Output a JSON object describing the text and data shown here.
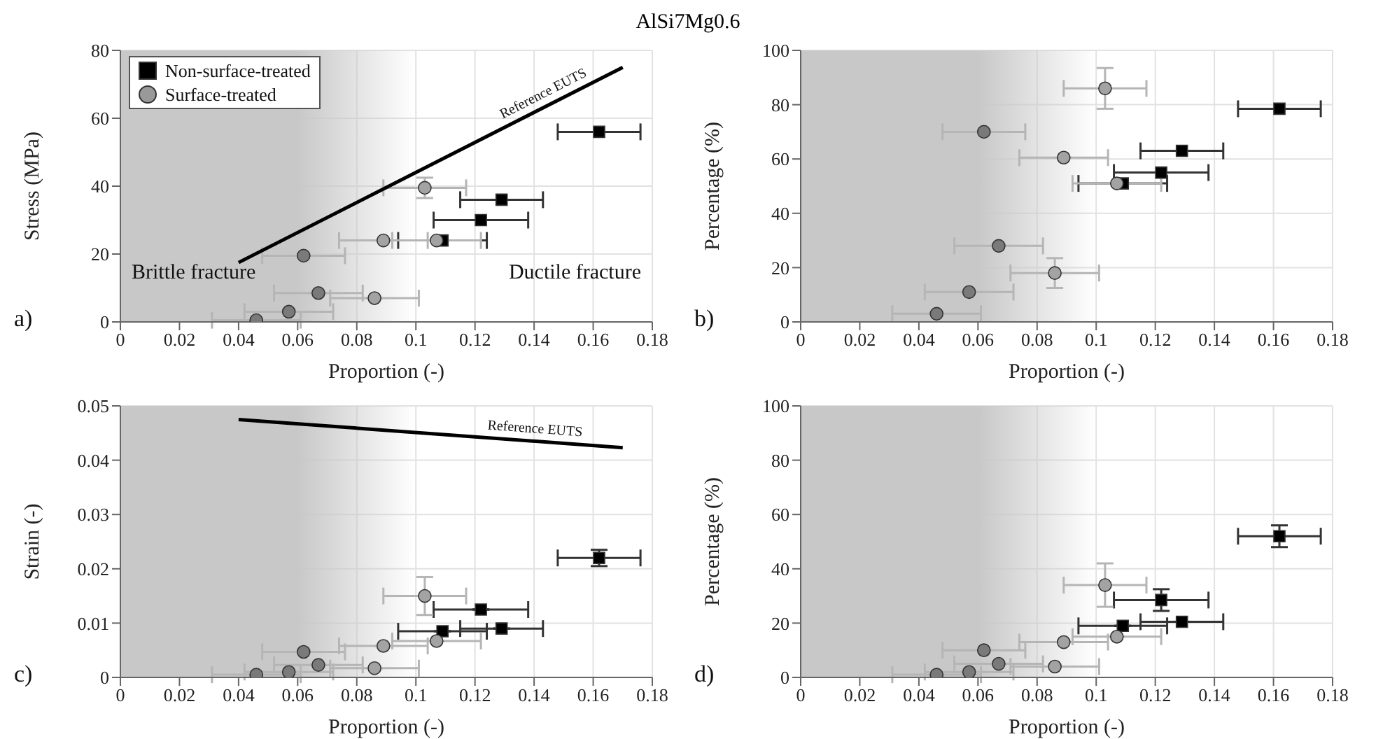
{
  "chart_data": [
    {
      "type": "scatter",
      "title": "AlSi7Mg0.6",
      "xlabel": "Proportion (-)",
      "ylabel": "Stress (MPa)",
      "xlim": [
        0,
        0.18
      ],
      "xticks": [
        0,
        0.02,
        0.04,
        0.06,
        0.08,
        0.1,
        0.12,
        0.14,
        0.16,
        0.18
      ],
      "ylim": [
        0,
        80
      ],
      "yticks": [
        0,
        20,
        40,
        60,
        80
      ],
      "grid": true,
      "legend": "top left",
      "bands": [
        {
          "axis": "x",
          "from": 0,
          "to": 0.1,
          "color": "#c8c8c8"
        }
      ],
      "annotations": [
        "a)",
        "Brittle fracture",
        "Ductile fracture",
        {
          "text": "Reference EUTS",
          "x": 0.145,
          "y": 64
        }
      ],
      "series": [
        {
          "name": "Non-surface-treated",
          "color": "#000000",
          "marker": "square",
          "x": [
            0.109,
            0.122,
            0.129,
            0.162
          ],
          "values": [
            24,
            30,
            36,
            56
          ],
          "xerrors": [
            0.015,
            0.016,
            0.014,
            0.014
          ]
        },
        {
          "name": "Surface-treated",
          "color": "#999999",
          "colors": [
            "#7a7a7a",
            "#7a7a7a",
            "#7a7a7a",
            "#7a7a7a",
            "#a3a3a3",
            "#a3a3a3",
            "#a3a3a3",
            "#a3a3a3"
          ],
          "marker": "circle",
          "x": [
            0.046,
            0.057,
            0.062,
            0.067,
            0.086,
            0.089,
            0.103,
            0.107
          ],
          "values": [
            0.5,
            3,
            19.5,
            8.5,
            7,
            24,
            39.5,
            24
          ],
          "xerrors": [
            0.015,
            0.015,
            0.014,
            0.015,
            0.015,
            0.015,
            0.014,
            0.015
          ],
          "errors": [
            null,
            null,
            null,
            null,
            null,
            null,
            3,
            null
          ]
        },
        {
          "type": "line",
          "color": "#000000",
          "marker": "none",
          "x": [
            0.04,
            0.17
          ],
          "values": [
            17.5,
            75
          ]
        }
      ]
    },
    {
      "type": "scatter",
      "xlabel": "Proportion (-)",
      "ylabel": "Percentage (%)",
      "xlim": [
        0,
        0.18
      ],
      "xticks": [
        0,
        0.02,
        0.04,
        0.06,
        0.08,
        0.1,
        0.12,
        0.14,
        0.16,
        0.18
      ],
      "ylim": [
        0,
        100
      ],
      "yticks": [
        0,
        20,
        40,
        60,
        80,
        100
      ],
      "grid": true,
      "bands": [
        {
          "axis": "x",
          "from": 0,
          "to": 0.1,
          "color": "#c8c8c8"
        }
      ],
      "annotations": [
        "b)"
      ],
      "series": [
        {
          "color": "#000000",
          "marker": "square",
          "x": [
            0.109,
            0.122,
            0.129,
            0.162
          ],
          "values": [
            51,
            55,
            63,
            78.5
          ],
          "xerrors": [
            0.015,
            0.016,
            0.014,
            0.014
          ]
        },
        {
          "color": "#999999",
          "colors": [
            "#7a7a7a",
            "#7a7a7a",
            "#7a7a7a",
            "#7a7a7a",
            "#a3a3a3",
            "#a3a3a3",
            "#a3a3a3",
            "#a3a3a3"
          ],
          "marker": "circle",
          "x": [
            0.046,
            0.057,
            0.062,
            0.067,
            0.086,
            0.089,
            0.103,
            0.107
          ],
          "values": [
            3,
            11,
            70,
            28,
            18,
            60.5,
            86,
            51
          ],
          "xerrors": [
            0.015,
            0.015,
            0.014,
            0.015,
            0.015,
            0.015,
            0.014,
            0.015
          ],
          "errors": [
            null,
            null,
            null,
            null,
            5.5,
            null,
            7.5,
            null
          ]
        }
      ]
    },
    {
      "type": "scatter",
      "xlabel": "Proportion (-)",
      "ylabel": "Strain (-)",
      "xlim": [
        0,
        0.18
      ],
      "xticks": [
        0,
        0.02,
        0.04,
        0.06,
        0.08,
        0.1,
        0.12,
        0.14,
        0.16,
        0.18
      ],
      "ylim": [
        0,
        0.05
      ],
      "yticks": [
        0,
        0.01,
        0.02,
        0.03,
        0.04,
        0.05
      ],
      "grid": true,
      "bands": [
        {
          "axis": "x",
          "from": 0,
          "to": 0.1,
          "color": "#c8c8c8"
        }
      ],
      "annotations": [
        "c)",
        {
          "text": "Reference EUTS",
          "x": 0.14,
          "y": 0.0435
        }
      ],
      "series": [
        {
          "color": "#000000",
          "marker": "square",
          "x": [
            0.109,
            0.122,
            0.129,
            0.162
          ],
          "values": [
            0.0085,
            0.0125,
            0.009,
            0.022
          ],
          "xerrors": [
            0.015,
            0.016,
            0.014,
            0.014
          ],
          "errors": [
            null,
            null,
            null,
            0.0015
          ]
        },
        {
          "color": "#999999",
          "colors": [
            "#7a7a7a",
            "#7a7a7a",
            "#7a7a7a",
            "#7a7a7a",
            "#a3a3a3",
            "#a3a3a3",
            "#a3a3a3",
            "#a3a3a3"
          ],
          "marker": "circle",
          "x": [
            0.046,
            0.057,
            0.062,
            0.067,
            0.086,
            0.089,
            0.103,
            0.107
          ],
          "values": [
            0.0005,
            0.001,
            0.0047,
            0.0023,
            0.0017,
            0.0058,
            0.015,
            0.0067
          ],
          "xerrors": [
            0.015,
            0.015,
            0.014,
            0.015,
            0.015,
            0.015,
            0.014,
            0.015
          ],
          "errors": [
            null,
            null,
            null,
            null,
            null,
            null,
            0.0035,
            null
          ]
        },
        {
          "type": "line",
          "color": "#000000",
          "marker": "none",
          "x": [
            0.04,
            0.17
          ],
          "values": [
            0.0475,
            0.0423
          ]
        }
      ]
    },
    {
      "type": "scatter",
      "xlabel": "Proportion (-)",
      "ylabel": "Percentage (%)",
      "xlim": [
        0,
        0.18
      ],
      "xticks": [
        0,
        0.02,
        0.04,
        0.06,
        0.08,
        0.1,
        0.12,
        0.14,
        0.16,
        0.18
      ],
      "ylim": [
        0,
        100
      ],
      "yticks": [
        0,
        20,
        40,
        60,
        80,
        100
      ],
      "grid": true,
      "bands": [
        {
          "axis": "x",
          "from": 0,
          "to": 0.1,
          "color": "#c8c8c8"
        }
      ],
      "annotations": [
        "d)"
      ],
      "series": [
        {
          "color": "#000000",
          "marker": "square",
          "x": [
            0.109,
            0.122,
            0.129,
            0.162
          ],
          "values": [
            19,
            28.5,
            20.5,
            52
          ],
          "xerrors": [
            0.015,
            0.016,
            0.014,
            0.014
          ],
          "errors": [
            null,
            4,
            null,
            4
          ]
        },
        {
          "color": "#999999",
          "colors": [
            "#7a7a7a",
            "#7a7a7a",
            "#7a7a7a",
            "#7a7a7a",
            "#a3a3a3",
            "#a3a3a3",
            "#a3a3a3",
            "#a3a3a3"
          ],
          "marker": "circle",
          "x": [
            0.046,
            0.057,
            0.062,
            0.067,
            0.086,
            0.089,
            0.103,
            0.107
          ],
          "values": [
            1,
            2,
            10,
            5,
            4,
            13,
            34,
            15
          ],
          "xerrors": [
            0.015,
            0.015,
            0.014,
            0.015,
            0.015,
            0.015,
            0.014,
            0.015
          ],
          "errors": [
            null,
            null,
            null,
            null,
            null,
            null,
            8,
            null
          ]
        }
      ]
    }
  ]
}
